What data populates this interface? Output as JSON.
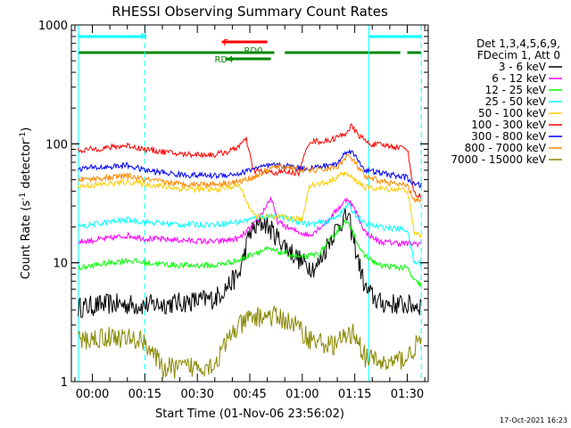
{
  "chart_data": {
    "type": "line",
    "title": "RHESSI Observing Summary Count Rates",
    "xlabel": "Start Time (01-Nov-06 23:56:02)",
    "ylabel_parts": [
      "Count Rate (s",
      "-1",
      " detector",
      "-1",
      ")"
    ],
    "yscale": "log",
    "ylim": [
      1,
      1000
    ],
    "xlim_minutes": [
      -6,
      36
    ],
    "x_tick_labels": [
      "00:00",
      "00:15",
      "00:30",
      "00:45",
      "01:00",
      "01:15",
      "01:30"
    ],
    "x_tick_minutes": [
      0,
      15,
      30,
      45,
      60,
      75,
      90
    ],
    "y_tick_labels": [
      "1",
      "10",
      "100",
      "1000"
    ],
    "y_tick_values": [
      1,
      10,
      100,
      1000
    ],
    "footer_date": "17-Oct-2021 16:23",
    "legend": {
      "header": [
        "Det 1,3,4,5,6,9,",
        "FDecim 1, Att 0"
      ],
      "placement": "right"
    },
    "flags": [
      {
        "label": "N",
        "color": "#00ffff",
        "row": "top",
        "segments": [
          [
            -4,
            15
          ],
          [
            79,
            94
          ]
        ]
      },
      {
        "label": "F",
        "color": "#ff0000",
        "row": "f",
        "segments": [
          [
            37,
            50
          ]
        ]
      },
      {
        "label": "RD0",
        "color": "#008800",
        "row": "rd0",
        "segments": [
          [
            -4,
            52
          ],
          [
            55,
            88
          ],
          [
            90,
            94
          ]
        ]
      },
      {
        "label": "RD4",
        "color": "#008800",
        "row": "rd4",
        "segments": [
          [
            38,
            51
          ]
        ]
      }
    ],
    "vertical_markers": [
      {
        "minute": -4,
        "color": "#00ffff",
        "style": "solid"
      },
      {
        "minute": 15,
        "color": "#00ffff",
        "style": "dashed"
      },
      {
        "minute": 79,
        "color": "#00ffff",
        "style": "solid"
      },
      {
        "minute": 94,
        "color": "#00ffff",
        "style": "dashed"
      }
    ],
    "series": [
      {
        "name": "3 - 6 keV",
        "color": "#000000",
        "points": [
          [
            -4,
            4.2
          ],
          [
            5,
            4.5
          ],
          [
            15,
            4.4
          ],
          [
            25,
            4.6
          ],
          [
            35,
            5
          ],
          [
            42,
            8
          ],
          [
            45,
            18
          ],
          [
            49,
            22
          ],
          [
            54,
            15
          ],
          [
            60,
            10
          ],
          [
            64,
            9
          ],
          [
            68,
            16
          ],
          [
            71,
            22
          ],
          [
            73,
            25
          ],
          [
            75,
            14
          ],
          [
            78,
            6
          ],
          [
            82,
            4.6
          ],
          [
            90,
            4.4
          ],
          [
            94,
            4.4
          ]
        ]
      },
      {
        "name": "6 - 12 keV",
        "color": "#ff00ff",
        "points": [
          [
            -4,
            15
          ],
          [
            5,
            16
          ],
          [
            10,
            17
          ],
          [
            15,
            16
          ],
          [
            25,
            15.5
          ],
          [
            35,
            15
          ],
          [
            42,
            16
          ],
          [
            47,
            22
          ],
          [
            51,
            35
          ],
          [
            53,
            22
          ],
          [
            57,
            19
          ],
          [
            62,
            17
          ],
          [
            67,
            22
          ],
          [
            70,
            28
          ],
          [
            73,
            35
          ],
          [
            75,
            28
          ],
          [
            78,
            18
          ],
          [
            82,
            15
          ],
          [
            90,
            14.5
          ],
          [
            94,
            14.5
          ]
        ]
      },
      {
        "name": "12 - 25 keV",
        "color": "#00ff00",
        "points": [
          [
            -4,
            9
          ],
          [
            5,
            10
          ],
          [
            10,
            10.5
          ],
          [
            15,
            10
          ],
          [
            25,
            9.5
          ],
          [
            35,
            9.5
          ],
          [
            42,
            10.5
          ],
          [
            46,
            12
          ],
          [
            50,
            13
          ],
          [
            55,
            12
          ],
          [
            60,
            11
          ],
          [
            65,
            12
          ],
          [
            69,
            17
          ],
          [
            72,
            22
          ],
          [
            74,
            20
          ],
          [
            77,
            12
          ],
          [
            82,
            9.5
          ],
          [
            90,
            9
          ],
          [
            92,
            7
          ],
          [
            94,
            6.5
          ]
        ]
      },
      {
        "name": "25 - 50 keV",
        "color": "#00ffff",
        "points": [
          [
            -4,
            20
          ],
          [
            5,
            22
          ],
          [
            10,
            23
          ],
          [
            15,
            22
          ],
          [
            25,
            21
          ],
          [
            35,
            21
          ],
          [
            42,
            22
          ],
          [
            47,
            24
          ],
          [
            52,
            25
          ],
          [
            57,
            23
          ],
          [
            62,
            21
          ],
          [
            67,
            22
          ],
          [
            71,
            26
          ],
          [
            73,
            31
          ],
          [
            75,
            26
          ],
          [
            78,
            21
          ],
          [
            82,
            20
          ],
          [
            90,
            19
          ],
          [
            92,
            10
          ],
          [
            94,
            10
          ]
        ]
      },
      {
        "name": "50 - 100 keV",
        "color": "#ffcc00",
        "points": [
          [
            -4,
            44
          ],
          [
            5,
            46
          ],
          [
            10,
            48
          ],
          [
            15,
            46
          ],
          [
            25,
            42
          ],
          [
            35,
            41
          ],
          [
            42,
            45
          ],
          [
            46,
            25
          ],
          [
            50,
            24
          ],
          [
            55,
            24
          ],
          [
            60,
            23
          ],
          [
            62,
            45
          ],
          [
            67,
            47
          ],
          [
            72,
            57
          ],
          [
            75,
            50
          ],
          [
            78,
            43
          ],
          [
            82,
            42
          ],
          [
            90,
            41
          ],
          [
            92,
            18
          ],
          [
            94,
            17
          ]
        ]
      },
      {
        "name": "100 - 300 keV",
        "color": "#ff0000",
        "points": [
          [
            -4,
            88
          ],
          [
            5,
            93
          ],
          [
            10,
            97
          ],
          [
            15,
            90
          ],
          [
            25,
            82
          ],
          [
            35,
            81
          ],
          [
            40,
            88
          ],
          [
            44,
            108
          ],
          [
            46,
            60
          ],
          [
            50,
            57
          ],
          [
            55,
            58
          ],
          [
            59,
            57
          ],
          [
            62,
            105
          ],
          [
            67,
            105
          ],
          [
            72,
            120
          ],
          [
            74,
            140
          ],
          [
            76,
            120
          ],
          [
            79,
            100
          ],
          [
            85,
            96
          ],
          [
            90,
            92
          ],
          [
            92,
            38
          ],
          [
            94,
            36
          ]
        ]
      },
      {
        "name": "300 - 800 keV",
        "color": "#0000ff",
        "points": [
          [
            -4,
            62
          ],
          [
            5,
            64
          ],
          [
            10,
            66
          ],
          [
            15,
            60
          ],
          [
            25,
            55
          ],
          [
            35,
            54
          ],
          [
            42,
            56
          ],
          [
            46,
            62
          ],
          [
            52,
            66
          ],
          [
            56,
            65
          ],
          [
            60,
            62
          ],
          [
            65,
            64
          ],
          [
            70,
            68
          ],
          [
            73,
            90
          ],
          [
            75,
            80
          ],
          [
            78,
            60
          ],
          [
            85,
            55
          ],
          [
            90,
            52
          ],
          [
            92,
            45
          ],
          [
            94,
            45
          ]
        ]
      },
      {
        "name": "800 - 7000 keV",
        "color": "#ff8800",
        "points": [
          [
            -4,
            50
          ],
          [
            5,
            52
          ],
          [
            10,
            54
          ],
          [
            15,
            50
          ],
          [
            25,
            46
          ],
          [
            35,
            46
          ],
          [
            42,
            48
          ],
          [
            47,
            54
          ],
          [
            52,
            64
          ],
          [
            56,
            64
          ],
          [
            60,
            60
          ],
          [
            65,
            60
          ],
          [
            70,
            64
          ],
          [
            73,
            80
          ],
          [
            75,
            70
          ],
          [
            78,
            52
          ],
          [
            85,
            47
          ],
          [
            90,
            44
          ],
          [
            92,
            34
          ],
          [
            94,
            33
          ]
        ]
      },
      {
        "name": "7000 - 15000 keV",
        "color": "#888800",
        "points": [
          [
            -4,
            2.2
          ],
          [
            5,
            2.4
          ],
          [
            10,
            2.3
          ],
          [
            15,
            2.2
          ],
          [
            20,
            1.3
          ],
          [
            25,
            1.3
          ],
          [
            35,
            1.4
          ],
          [
            40,
            2.6
          ],
          [
            45,
            3.4
          ],
          [
            50,
            3.6
          ],
          [
            54,
            3.4
          ],
          [
            58,
            3.0
          ],
          [
            62,
            2.3
          ],
          [
            68,
            2.0
          ],
          [
            72,
            2.3
          ],
          [
            75,
            2.6
          ],
          [
            78,
            1.6
          ],
          [
            84,
            1.4
          ],
          [
            90,
            1.6
          ],
          [
            94,
            2.3
          ]
        ]
      }
    ]
  }
}
